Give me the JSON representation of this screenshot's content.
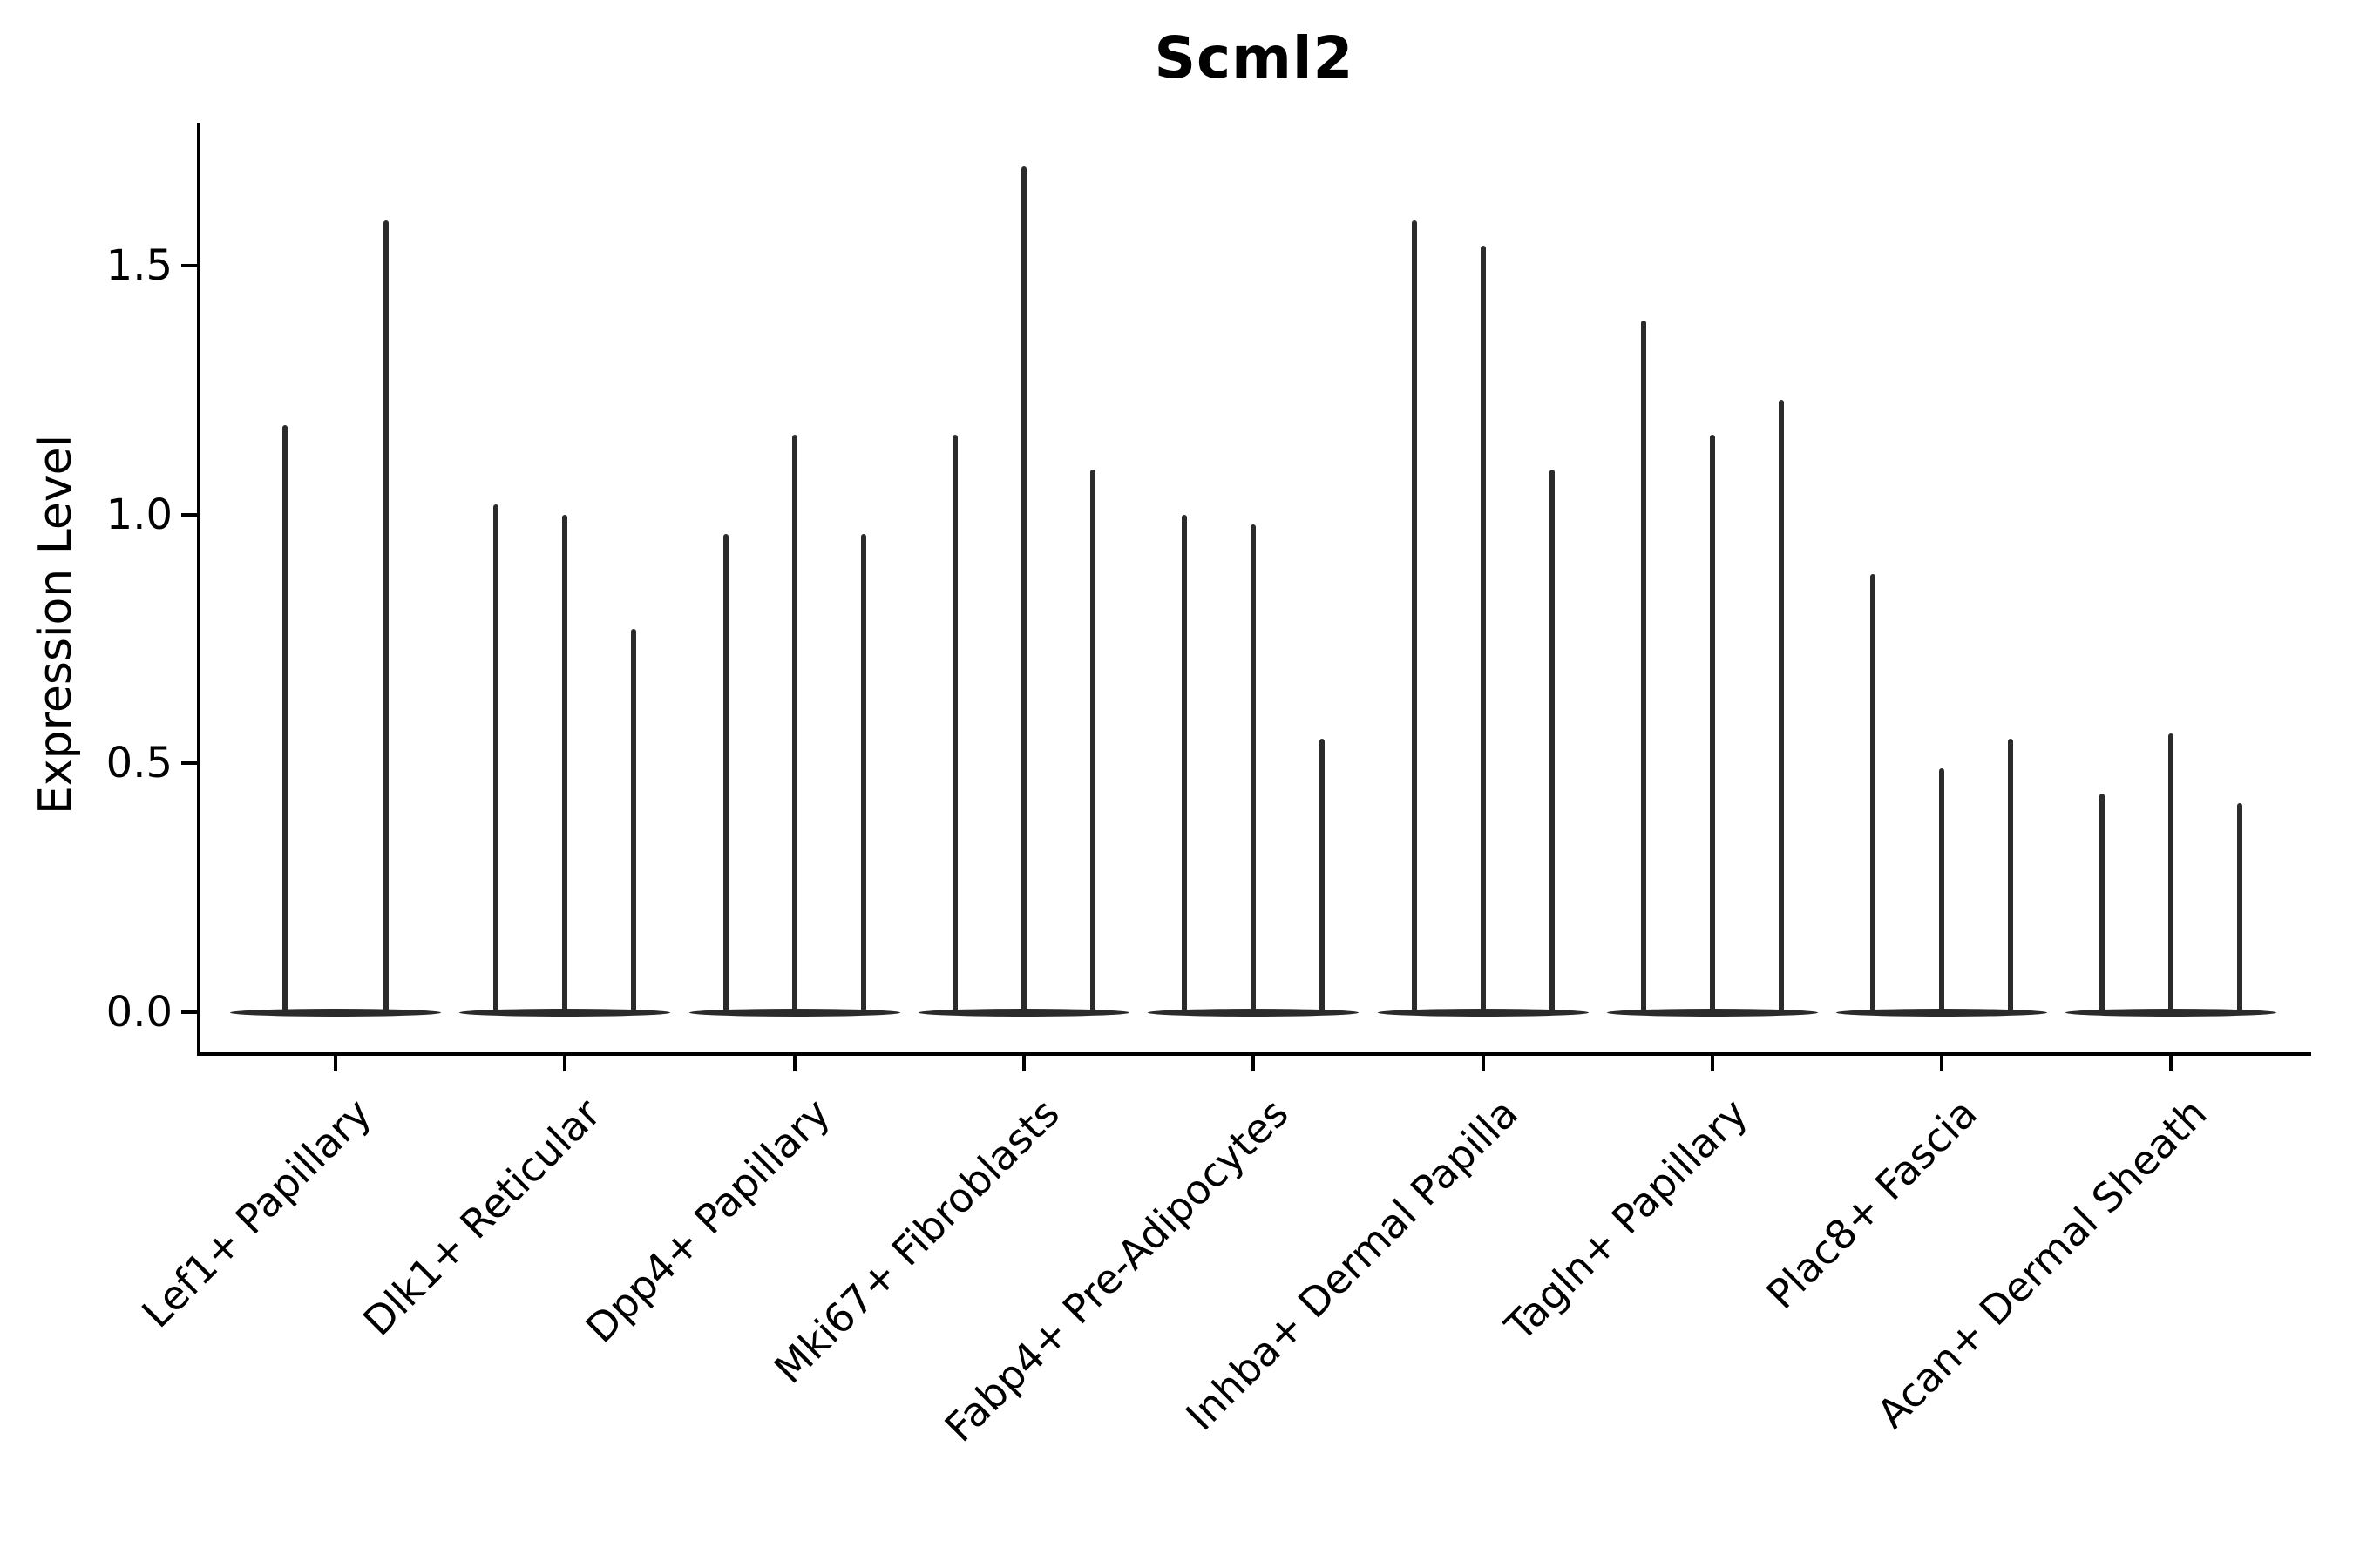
{
  "title": "Scml2",
  "y_axis": {
    "label": "Expression Level",
    "tick_labels": [
      "0.0",
      "0.5",
      "1.0",
      "1.5"
    ]
  },
  "colors": {
    "violin": "#2b2b2b",
    "axis": "#000000",
    "background": "#ffffff"
  },
  "chart_data": {
    "type": "violin",
    "title": "Scml2",
    "xlabel": "",
    "ylabel": "Expression Level",
    "ylim": [
      -0.08,
      1.79
    ],
    "yticks": [
      0.0,
      0.5,
      1.0,
      1.5
    ],
    "grid": false,
    "legend": false,
    "categories": [
      "Lef1+ Papillary",
      "Dlk1+ Reticular",
      "Dpp4+ Papillary",
      "Mki67+ Fibroblasts",
      "Fabp4+ Pre-Adipocytes",
      "Inhba+ Dermal Papilla",
      "Tagln+ Papillary",
      "Plac8+ Fascia",
      "Acan+ Dermal Sheath"
    ],
    "groups": [
      {
        "label": "Lef1+ Papillary",
        "violin_maxima": [
          1.18,
          1.59
        ]
      },
      {
        "label": "Dlk1+ Reticular",
        "violin_maxima": [
          1.02,
          1.0,
          0.77
        ]
      },
      {
        "label": "Dpp4+ Papillary",
        "violin_maxima": [
          0.96,
          1.16,
          0.96
        ]
      },
      {
        "label": "Mki67+ Fibroblasts",
        "violin_maxima": [
          1.16,
          1.7,
          1.09
        ]
      },
      {
        "label": "Fabp4+ Pre-Adipocytes",
        "violin_maxima": [
          1.0,
          0.98,
          0.55
        ]
      },
      {
        "label": "Inhba+ Dermal Papilla",
        "violin_maxima": [
          1.59,
          1.54,
          1.09
        ]
      },
      {
        "label": "Tagln+ Papillary",
        "violin_maxima": [
          1.39,
          1.16,
          1.23
        ]
      },
      {
        "label": "Plac8+ Fascia",
        "violin_maxima": [
          0.88,
          0.49,
          0.55
        ]
      },
      {
        "label": "Acan+ Dermal Sheath",
        "violin_maxima": [
          0.44,
          0.56,
          0.42
        ]
      }
    ],
    "violin_baseline_value": 0.0
  }
}
